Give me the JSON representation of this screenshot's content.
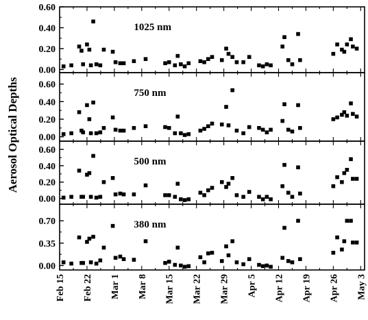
{
  "chart_data": {
    "type": "scatter",
    "ylabel": "Aerosol Optical Depths",
    "xlabel": "",
    "x_tick_labels": [
      "Feb 15",
      "Feb 22",
      "Mar 1",
      "Mar 8",
      "Mar 15",
      "Mar 22",
      "Mar 29",
      "Apr 5",
      "Apr 12",
      "Apr 19",
      "Apr 26",
      "May 3"
    ],
    "x_tick_days": [
      0,
      7,
      14,
      21,
      28,
      35,
      42,
      49,
      56,
      63,
      70,
      77
    ],
    "xlim_days": [
      0,
      78
    ],
    "grid": false,
    "marker_color": "#000000",
    "panels": [
      {
        "label": "1025 nm",
        "ylim": [
          -0.03,
          0.6
        ],
        "yticks": [
          0.0,
          0.2,
          0.4,
          0.6
        ],
        "ytick_labels": [
          "0.00",
          "0.20",
          "0.40",
          "0.60"
        ],
        "points": [
          {
            "day": 1,
            "y": 0.03
          },
          {
            "day": 3,
            "y": 0.04
          },
          {
            "day": 5,
            "y": 0.22
          },
          {
            "day": 5.6,
            "y": 0.18
          },
          {
            "day": 6,
            "y": 0.05
          },
          {
            "day": 7,
            "y": 0.24
          },
          {
            "day": 7.6,
            "y": 0.19
          },
          {
            "day": 8,
            "y": 0.04
          },
          {
            "day": 8.6,
            "y": 0.46
          },
          {
            "day": 9.4,
            "y": 0.05
          },
          {
            "day": 10.4,
            "y": 0.04
          },
          {
            "day": 11.3,
            "y": 0.19
          },
          {
            "day": 13.6,
            "y": 0.17
          },
          {
            "day": 14.3,
            "y": 0.07
          },
          {
            "day": 15.5,
            "y": 0.06
          },
          {
            "day": 16.4,
            "y": 0.06
          },
          {
            "day": 19,
            "y": 0.08
          },
          {
            "day": 22,
            "y": 0.1
          },
          {
            "day": 27,
            "y": 0.06
          },
          {
            "day": 28,
            "y": 0.07
          },
          {
            "day": 29.5,
            "y": 0.04
          },
          {
            "day": 30.2,
            "y": 0.13
          },
          {
            "day": 31,
            "y": 0.05
          },
          {
            "day": 32,
            "y": 0.03
          },
          {
            "day": 33,
            "y": 0.06
          },
          {
            "day": 36,
            "y": 0.08
          },
          {
            "day": 37,
            "y": 0.07
          },
          {
            "day": 38,
            "y": 0.1
          },
          {
            "day": 39,
            "y": 0.12
          },
          {
            "day": 41.5,
            "y": 0.09
          },
          {
            "day": 42.6,
            "y": 0.2
          },
          {
            "day": 43.2,
            "y": 0.15
          },
          {
            "day": 44.2,
            "y": 0.12
          },
          {
            "day": 45.3,
            "y": 0.07
          },
          {
            "day": 47,
            "y": 0.07
          },
          {
            "day": 48.5,
            "y": 0.12
          },
          {
            "day": 51,
            "y": 0.04
          },
          {
            "day": 52,
            "y": 0.03
          },
          {
            "day": 53,
            "y": 0.05
          },
          {
            "day": 54,
            "y": 0.04
          },
          {
            "day": 57,
            "y": 0.22
          },
          {
            "day": 57.5,
            "y": 0.31
          },
          {
            "day": 58.5,
            "y": 0.09
          },
          {
            "day": 59.5,
            "y": 0.05
          },
          {
            "day": 61,
            "y": 0.34
          },
          {
            "day": 61.5,
            "y": 0.09
          },
          {
            "day": 70,
            "y": 0.15
          },
          {
            "day": 71,
            "y": 0.24
          },
          {
            "day": 72.2,
            "y": 0.19
          },
          {
            "day": 72.8,
            "y": 0.17
          },
          {
            "day": 73.5,
            "y": 0.24
          },
          {
            "day": 74.5,
            "y": 0.29
          },
          {
            "day": 75,
            "y": 0.22
          },
          {
            "day": 76,
            "y": 0.2
          }
        ]
      },
      {
        "label": "750 nm",
        "ylim": [
          -0.05,
          0.73
        ],
        "yticks": [
          0.0,
          0.2,
          0.4,
          0.6
        ],
        "ytick_labels": [
          "0.00",
          "0.20",
          "0.40",
          "0.60"
        ],
        "points": [
          {
            "day": 1,
            "y": 0.03
          },
          {
            "day": 3,
            "y": 0.04
          },
          {
            "day": 5,
            "y": 0.28
          },
          {
            "day": 5.6,
            "y": 0.07
          },
          {
            "day": 6,
            "y": 0.05
          },
          {
            "day": 7,
            "y": 0.36
          },
          {
            "day": 7.6,
            "y": 0.2
          },
          {
            "day": 8,
            "y": 0.04
          },
          {
            "day": 8.6,
            "y": 0.39
          },
          {
            "day": 9.4,
            "y": 0.04
          },
          {
            "day": 10.4,
            "y": 0.05
          },
          {
            "day": 11.3,
            "y": 0.1
          },
          {
            "day": 13.6,
            "y": 0.22
          },
          {
            "day": 14.3,
            "y": 0.08
          },
          {
            "day": 15.5,
            "y": 0.07
          },
          {
            "day": 16.4,
            "y": 0.07
          },
          {
            "day": 19,
            "y": 0.1
          },
          {
            "day": 22,
            "y": 0.12
          },
          {
            "day": 27,
            "y": 0.11
          },
          {
            "day": 28,
            "y": 0.1
          },
          {
            "day": 29.5,
            "y": 0.04
          },
          {
            "day": 30.2,
            "y": 0.23
          },
          {
            "day": 31,
            "y": 0.04
          },
          {
            "day": 32,
            "y": 0.02
          },
          {
            "day": 33,
            "y": 0.03
          },
          {
            "day": 36,
            "y": 0.07
          },
          {
            "day": 37,
            "y": 0.09
          },
          {
            "day": 38,
            "y": 0.12
          },
          {
            "day": 39,
            "y": 0.15
          },
          {
            "day": 41.5,
            "y": 0.14
          },
          {
            "day": 42.6,
            "y": 0.34
          },
          {
            "day": 43.2,
            "y": 0.13
          },
          {
            "day": 44.2,
            "y": 0.53
          },
          {
            "day": 45.3,
            "y": 0.07
          },
          {
            "day": 47,
            "y": 0.04
          },
          {
            "day": 48.5,
            "y": 0.11
          },
          {
            "day": 51,
            "y": 0.1
          },
          {
            "day": 52,
            "y": 0.08
          },
          {
            "day": 53,
            "y": 0.05
          },
          {
            "day": 54,
            "y": 0.08
          },
          {
            "day": 57,
            "y": 0.18
          },
          {
            "day": 57.5,
            "y": 0.37
          },
          {
            "day": 58.5,
            "y": 0.08
          },
          {
            "day": 59.5,
            "y": 0.06
          },
          {
            "day": 61,
            "y": 0.36
          },
          {
            "day": 61.5,
            "y": 0.1
          },
          {
            "day": 70,
            "y": 0.2
          },
          {
            "day": 71,
            "y": 0.22
          },
          {
            "day": 72.2,
            "y": 0.25
          },
          {
            "day": 72.8,
            "y": 0.28
          },
          {
            "day": 73.5,
            "y": 0.24
          },
          {
            "day": 74.5,
            "y": 0.38
          },
          {
            "day": 75,
            "y": 0.26
          },
          {
            "day": 76,
            "y": 0.23
          }
        ]
      },
      {
        "label": "500 nm",
        "ylim": [
          -0.07,
          0.7
        ],
        "yticks": [
          0.0,
          0.2,
          0.4,
          0.6
        ],
        "ytick_labels": [
          "0.00",
          "0.20",
          "0.40",
          "0.60"
        ],
        "points": [
          {
            "day": 1,
            "y": 0.01
          },
          {
            "day": 3,
            "y": 0.02
          },
          {
            "day": 5,
            "y": 0.34
          },
          {
            "day": 5.6,
            "y": 0.02
          },
          {
            "day": 6,
            "y": 0.02
          },
          {
            "day": 7,
            "y": 0.29
          },
          {
            "day": 7.6,
            "y": 0.31
          },
          {
            "day": 8,
            "y": 0.02
          },
          {
            "day": 8.6,
            "y": 0.52
          },
          {
            "day": 9.4,
            "y": 0.01
          },
          {
            "day": 10.4,
            "y": 0.02
          },
          {
            "day": 11.3,
            "y": 0.2
          },
          {
            "day": 13.6,
            "y": 0.25
          },
          {
            "day": 14.3,
            "y": 0.05
          },
          {
            "day": 15.5,
            "y": 0.06
          },
          {
            "day": 16.4,
            "y": 0.05
          },
          {
            "day": 19,
            "y": 0.05
          },
          {
            "day": 22,
            "y": 0.16
          },
          {
            "day": 27,
            "y": 0.04
          },
          {
            "day": 28,
            "y": 0.04
          },
          {
            "day": 29.5,
            "y": 0.02
          },
          {
            "day": 30.2,
            "y": 0.18
          },
          {
            "day": 31,
            "y": -0.01
          },
          {
            "day": 32,
            "y": -0.02
          },
          {
            "day": 33,
            "y": -0.01
          },
          {
            "day": 36,
            "y": 0.07
          },
          {
            "day": 37,
            "y": 0.04
          },
          {
            "day": 38,
            "y": 0.1
          },
          {
            "day": 39,
            "y": 0.13
          },
          {
            "day": 41.5,
            "y": 0.2
          },
          {
            "day": 42.6,
            "y": 0.14
          },
          {
            "day": 43.2,
            "y": 0.18
          },
          {
            "day": 44.2,
            "y": 0.25
          },
          {
            "day": 45.3,
            "y": 0.04
          },
          {
            "day": 47,
            "y": 0.02
          },
          {
            "day": 48.5,
            "y": 0.08
          },
          {
            "day": 51,
            "y": 0.02
          },
          {
            "day": 52,
            "y": -0.01
          },
          {
            "day": 53,
            "y": 0.02
          },
          {
            "day": 54,
            "y": -0.01
          },
          {
            "day": 57,
            "y": 0.15
          },
          {
            "day": 57.5,
            "y": 0.41
          },
          {
            "day": 58.5,
            "y": 0.07
          },
          {
            "day": 59.5,
            "y": 0.02
          },
          {
            "day": 61,
            "y": 0.38
          },
          {
            "day": 61.5,
            "y": 0.06
          },
          {
            "day": 70,
            "y": 0.15
          },
          {
            "day": 71,
            "y": 0.26
          },
          {
            "day": 72.2,
            "y": 0.2
          },
          {
            "day": 72.8,
            "y": 0.31
          },
          {
            "day": 73.5,
            "y": 0.35
          },
          {
            "day": 74.5,
            "y": 0.48
          },
          {
            "day": 75,
            "y": 0.24
          },
          {
            "day": 76,
            "y": 0.24
          }
        ]
      },
      {
        "label": "380 nm",
        "ylim": [
          -0.07,
          0.96
        ],
        "yticks": [
          0.0,
          0.35,
          0.7
        ],
        "ytick_labels": [
          "0.00",
          "0.35",
          "0.70"
        ],
        "points": [
          {
            "day": 1,
            "y": 0.05
          },
          {
            "day": 3,
            "y": 0.03
          },
          {
            "day": 5,
            "y": 0.44
          },
          {
            "day": 5.6,
            "y": 0.04
          },
          {
            "day": 6,
            "y": 0.04
          },
          {
            "day": 7,
            "y": 0.37
          },
          {
            "day": 7.6,
            "y": 0.42
          },
          {
            "day": 8,
            "y": 0.05
          },
          {
            "day": 8.6,
            "y": 0.45
          },
          {
            "day": 9.4,
            "y": 0.03
          },
          {
            "day": 10.4,
            "y": 0.08
          },
          {
            "day": 11.3,
            "y": 0.28
          },
          {
            "day": 13.6,
            "y": 0.62
          },
          {
            "day": 14.3,
            "y": 0.12
          },
          {
            "day": 15.5,
            "y": 0.14
          },
          {
            "day": 16.4,
            "y": 0.1
          },
          {
            "day": 19,
            "y": 0.09
          },
          {
            "day": 22,
            "y": 0.38
          },
          {
            "day": 27,
            "y": 0.04
          },
          {
            "day": 28,
            "y": 0.06
          },
          {
            "day": 29.5,
            "y": 0.01
          },
          {
            "day": 30.2,
            "y": 0.28
          },
          {
            "day": 31,
            "y": 0.0
          },
          {
            "day": 32,
            "y": -0.02
          },
          {
            "day": 33,
            "y": -0.01
          },
          {
            "day": 36,
            "y": 0.13
          },
          {
            "day": 37,
            "y": 0.05
          },
          {
            "day": 38,
            "y": 0.19
          },
          {
            "day": 39,
            "y": 0.2
          },
          {
            "day": 41.5,
            "y": 0.07
          },
          {
            "day": 42.6,
            "y": 0.3
          },
          {
            "day": 43.2,
            "y": 0.16
          },
          {
            "day": 44.2,
            "y": 0.38
          },
          {
            "day": 45.3,
            "y": 0.05
          },
          {
            "day": 47,
            "y": 0.02
          },
          {
            "day": 48.5,
            "y": 0.1
          },
          {
            "day": 51,
            "y": 0.01
          },
          {
            "day": 52,
            "y": -0.01
          },
          {
            "day": 53,
            "y": 0.0
          },
          {
            "day": 54,
            "y": -0.02
          },
          {
            "day": 57,
            "y": 0.12
          },
          {
            "day": 57.5,
            "y": 0.59
          },
          {
            "day": 58.5,
            "y": 0.07
          },
          {
            "day": 59.5,
            "y": 0.05
          },
          {
            "day": 61,
            "y": 0.7
          },
          {
            "day": 61.5,
            "y": 0.1
          },
          {
            "day": 70,
            "y": 0.2
          },
          {
            "day": 71,
            "y": 0.44
          },
          {
            "day": 72.2,
            "y": 0.25
          },
          {
            "day": 72.8,
            "y": 0.38
          },
          {
            "day": 73.5,
            "y": 0.7
          },
          {
            "day": 74.5,
            "y": 0.7
          },
          {
            "day": 75,
            "y": 0.36
          },
          {
            "day": 76,
            "y": 0.36
          }
        ]
      }
    ]
  }
}
